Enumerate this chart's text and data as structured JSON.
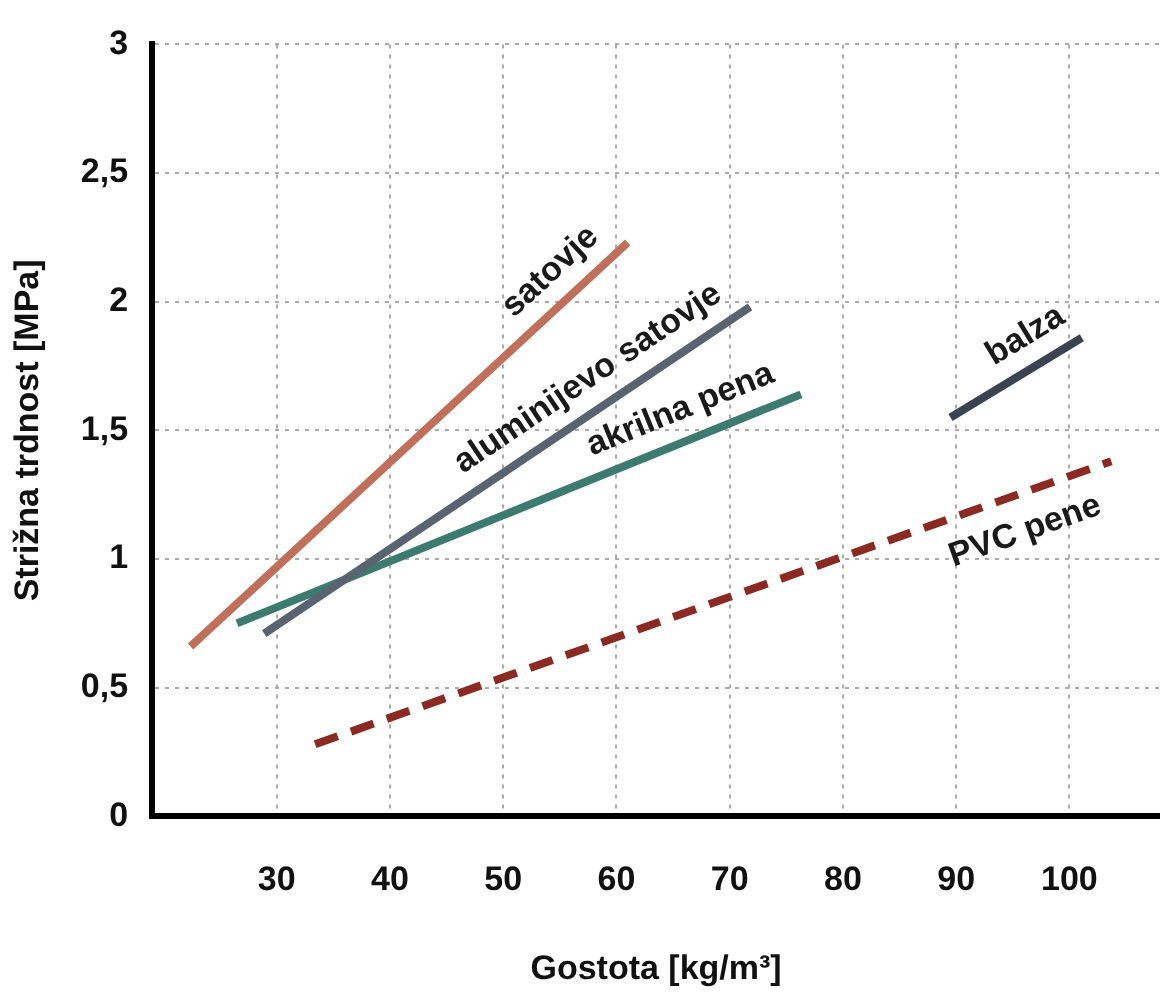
{
  "chart_data": {
    "type": "line",
    "xlabel": "Gostota [kg/m³]",
    "ylabel": "Strižna trdnost [MPa]",
    "xlim": [
      19,
      108
    ],
    "xticks": [
      30,
      40,
      50,
      60,
      70,
      80,
      90,
      100
    ],
    "ylim": [
      0,
      3
    ],
    "yticks": [
      0,
      {
        "value": 0.5,
        "label": "0,5"
      },
      1,
      {
        "value": 1.5,
        "label": "1,5"
      },
      2,
      {
        "value": 2.5,
        "label": "2,5"
      },
      3
    ],
    "grid": true,
    "legend": false,
    "marker": "none",
    "series": [
      {
        "name": "satovje",
        "color": "#c0705a",
        "x": [
          22.4,
          61
        ],
        "values": [
          0.66,
          2.23
        ]
      },
      {
        "name": "aluminijevo satovje",
        "color": "#5a6470",
        "x": [
          28.9,
          71.8
        ],
        "values": [
          0.71,
          1.98
        ]
      },
      {
        "name": "akrilna pena",
        "color": "#3d7a70",
        "x": [
          26.5,
          76.3
        ],
        "values": [
          0.75,
          1.64
        ]
      },
      {
        "name": "balza",
        "color": "#3a4450",
        "x": [
          89.5,
          101.1
        ],
        "values": [
          1.55,
          1.86
        ]
      },
      {
        "name": "PVC pene",
        "color": "#8b2a22",
        "x": [
          33.4,
          103.7
        ],
        "values": [
          0.28,
          1.38
        ],
        "line_style": "dashed"
      }
    ]
  }
}
